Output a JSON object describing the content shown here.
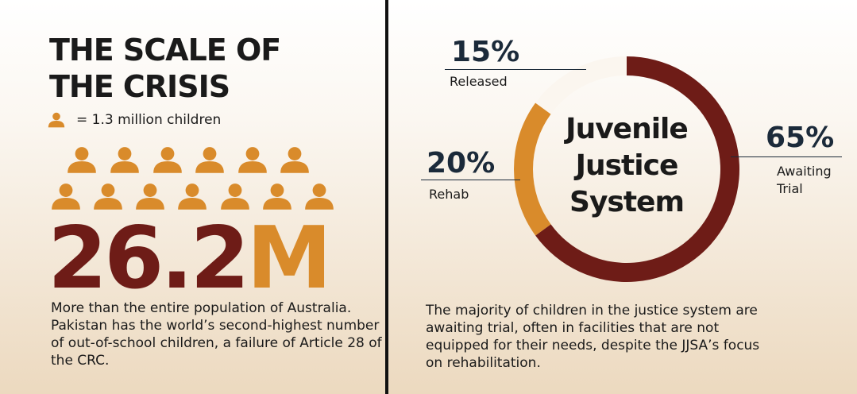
{
  "left": {
    "title": "THE SCALE OF THE CRISIS",
    "legend": "= 1.3 million children",
    "big_number": {
      "value": "26.2",
      "unit": "M"
    },
    "description": "More than the entire population of Australia. Pakistan has the world’s second-highest number of out-of-school children, a failure of Article 28 of the CRC."
  },
  "chart_data": {
    "type": "donut",
    "title": "Juvenile Justice System",
    "categories": [
      "Awaiting Trial",
      "Rehab",
      "Released"
    ],
    "values": [
      65,
      20,
      15
    ],
    "value_labels": [
      "65%",
      "20%",
      "15%"
    ],
    "colors": [
      "#6e1c17",
      "#d98b2b",
      "#fbf6ef"
    ]
  },
  "right": {
    "description": "The majority of children in the justice system are awaiting trial, often in facilities that are not equipped for their needs, despite the JJSA’s focus on rehabilitation."
  }
}
